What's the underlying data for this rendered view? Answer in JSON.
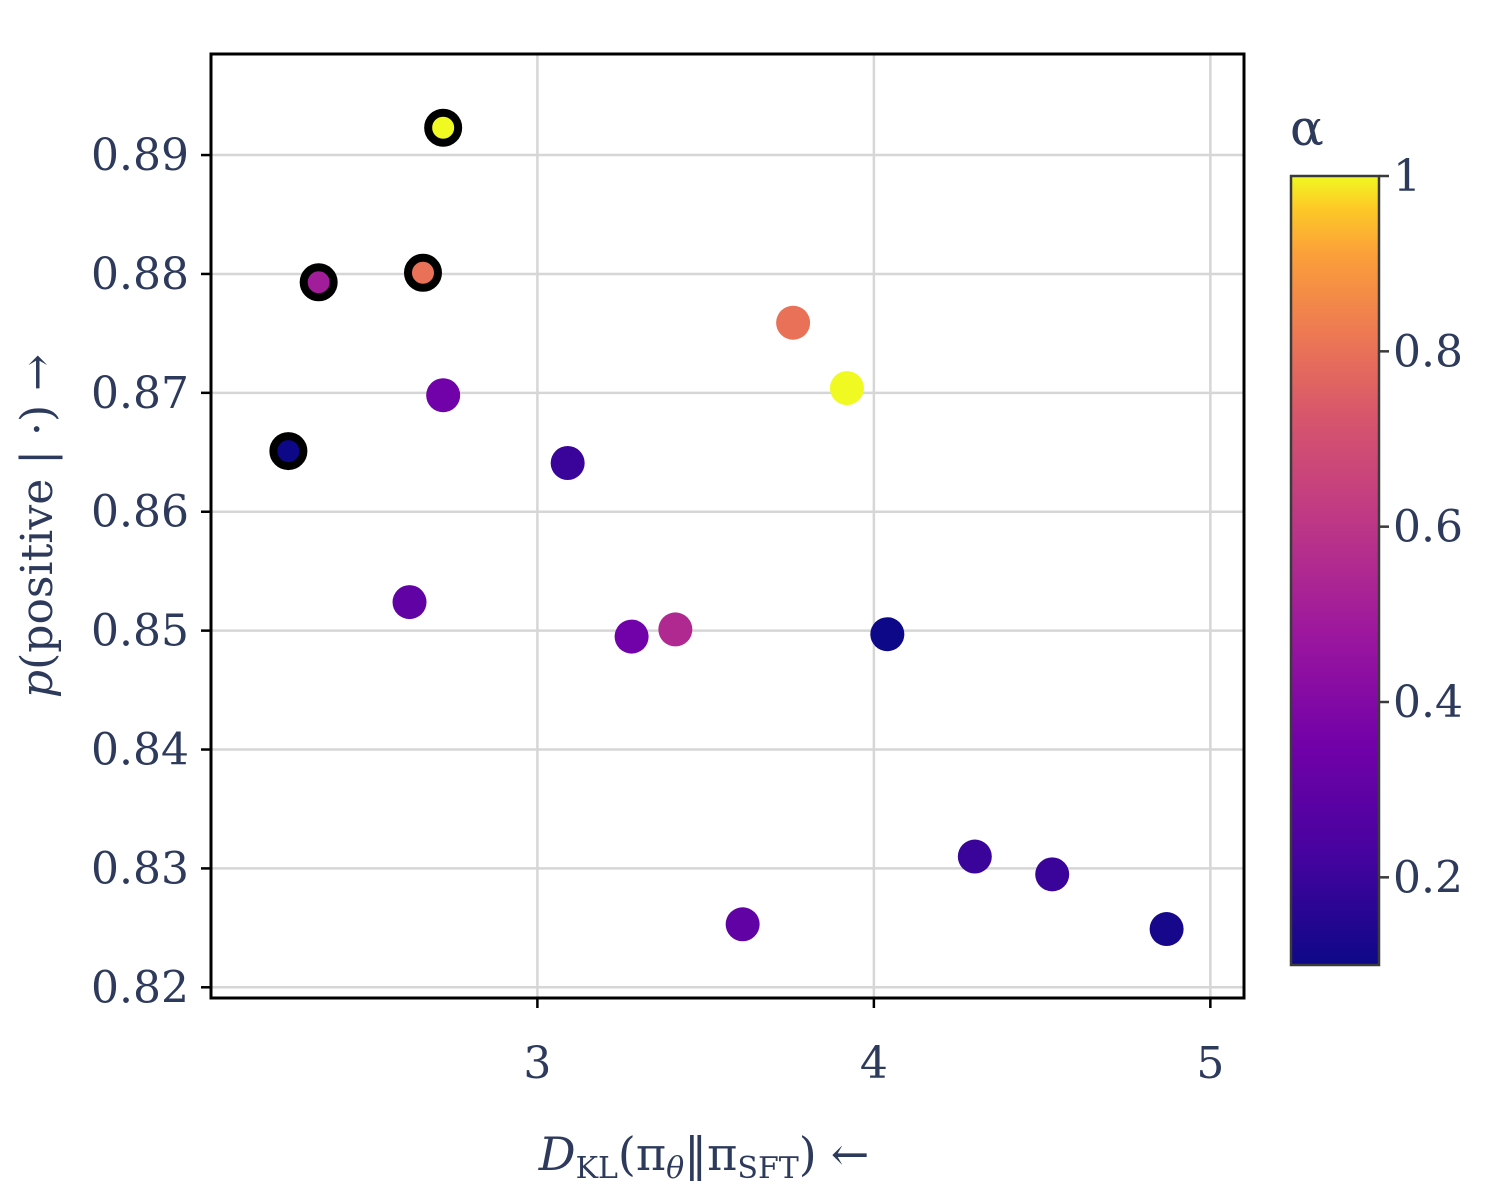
{
  "chart_data": {
    "type": "scatter",
    "xlabel": {
      "main": "D",
      "sub": "KL",
      "open": "(π",
      "sub2": "θ",
      "mid": "‖π",
      "sub3": "SFT",
      "close": ")",
      "arrow": "←"
    },
    "ylabel": {
      "main": "p",
      "rest": "(positive | ·)",
      "arrow": "→"
    },
    "xlim": [
      2.03,
      5.1
    ],
    "ylim": [
      0.8191,
      0.8985
    ],
    "xticks": [
      3,
      4,
      5
    ],
    "yticks": [
      0.82,
      0.83,
      0.84,
      0.85,
      0.86,
      0.87,
      0.88,
      0.89
    ],
    "xtick_labels": [
      "3",
      "4",
      "5"
    ],
    "ytick_labels": [
      "0.82",
      "0.83",
      "0.84",
      "0.85",
      "0.86",
      "0.87",
      "0.88",
      "0.89"
    ],
    "grid": true,
    "colorbar": {
      "label": "α",
      "colormap": "plasma",
      "range": [
        0.1,
        1.0
      ],
      "ticks": [
        0.2,
        0.4,
        0.6,
        0.8,
        1.0
      ],
      "tick_labels": [
        "0.2",
        "0.4",
        "0.6",
        "0.8",
        "1"
      ]
    },
    "points": [
      {
        "x": 2.72,
        "y": 0.8923,
        "alpha": 1.0,
        "highlight": true
      },
      {
        "x": 2.35,
        "y": 0.8793,
        "alpha": 0.5,
        "highlight": true
      },
      {
        "x": 2.66,
        "y": 0.8801,
        "alpha": 0.8,
        "highlight": true
      },
      {
        "x": 2.26,
        "y": 0.8651,
        "alpha": 0.1,
        "highlight": true
      },
      {
        "x": 2.72,
        "y": 0.8698,
        "alpha": 0.35,
        "highlight": false
      },
      {
        "x": 3.09,
        "y": 0.8641,
        "alpha": 0.2,
        "highlight": false
      },
      {
        "x": 3.76,
        "y": 0.8759,
        "alpha": 0.8,
        "highlight": false
      },
      {
        "x": 3.92,
        "y": 0.8704,
        "alpha": 1.0,
        "highlight": false
      },
      {
        "x": 2.62,
        "y": 0.8524,
        "alpha": 0.3,
        "highlight": false
      },
      {
        "x": 3.28,
        "y": 0.8495,
        "alpha": 0.35,
        "highlight": false
      },
      {
        "x": 3.41,
        "y": 0.8501,
        "alpha": 0.55,
        "highlight": false
      },
      {
        "x": 4.04,
        "y": 0.8497,
        "alpha": 0.1,
        "highlight": false
      },
      {
        "x": 3.61,
        "y": 0.8253,
        "alpha": 0.3,
        "highlight": false
      },
      {
        "x": 4.3,
        "y": 0.831,
        "alpha": 0.2,
        "highlight": false
      },
      {
        "x": 4.53,
        "y": 0.8295,
        "alpha": 0.2,
        "highlight": false
      },
      {
        "x": 4.87,
        "y": 0.8249,
        "alpha": 0.12,
        "highlight": false
      }
    ]
  }
}
